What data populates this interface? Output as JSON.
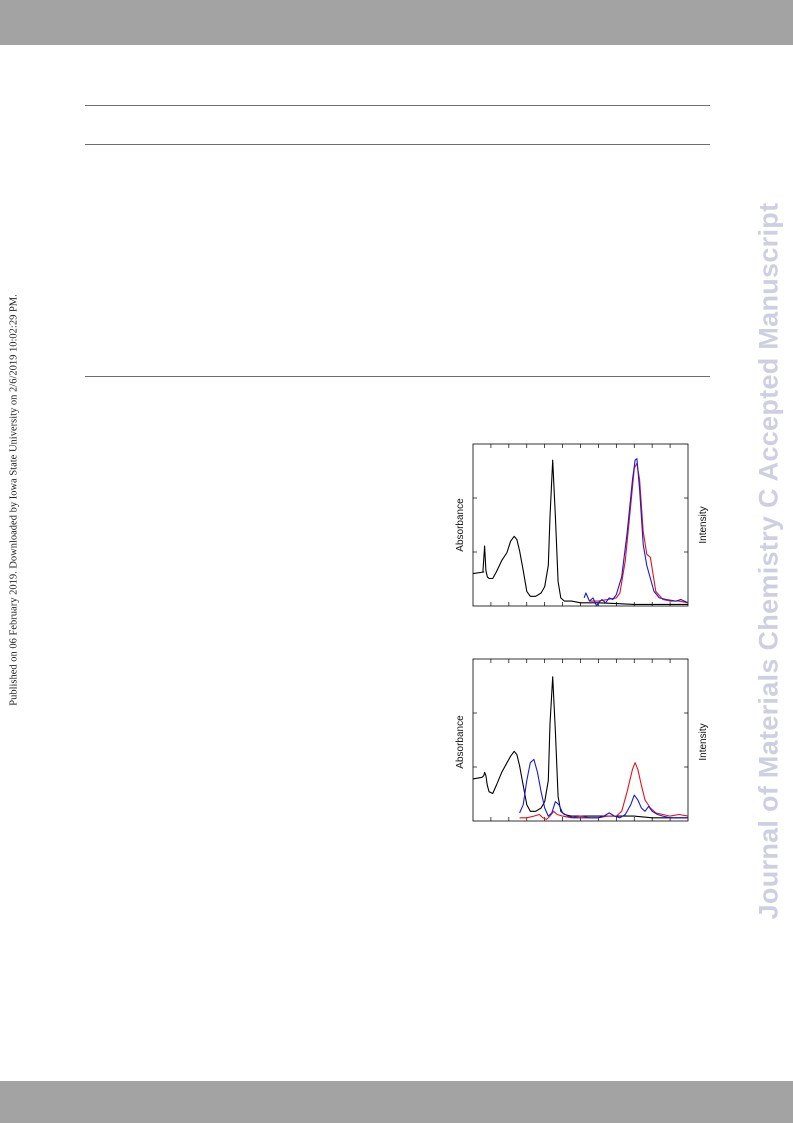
{
  "header": {
    "band_color": "#a3a3a3"
  },
  "footer": {
    "band_color": "#a3a3a3"
  },
  "side_note": "Published on 06 February 2019. Downloaded by Iowa State University on 2/6/2019 10:02:29 PM.",
  "watermark": "Journal of Materials Chemistry C Accepted Manuscript",
  "colors": {
    "absorbance": "#000000",
    "emission_red": "#e0141c",
    "emission_blue": "#1a1ad6",
    "watermark": "#cfcfe2"
  },
  "figures": [
    {
      "ylabel_left": "Absorbance",
      "ylabel_right": "Intensity"
    },
    {
      "ylabel_left": "Absorbance",
      "ylabel_right": "Intensity"
    }
  ],
  "chart_data": [
    {
      "type": "line",
      "xlabel": "",
      "ylabel": "Absorbance",
      "ylabel_right": "Intensity",
      "xlim": [
        0,
        12
      ],
      "ylim": [
        0,
        1
      ],
      "series": [
        {
          "color": "#000000",
          "x": [
            0,
            0.6,
            0.55,
            0.65,
            0.72,
            0.8,
            0.9,
            1.1,
            1.3,
            1.6,
            1.9,
            2.1,
            2.3,
            2.45,
            2.6,
            2.8,
            3.0,
            3.2,
            3.5,
            3.8,
            4.0,
            4.2,
            4.3,
            4.45,
            4.6,
            4.75,
            4.9,
            5.1,
            5.5,
            6.0,
            7.0,
            8.0,
            9.0,
            10.0,
            11.0,
            12.0
          ],
          "y": [
            0.2,
            0.21,
            0.21,
            0.37,
            0.22,
            0.18,
            0.17,
            0.17,
            0.21,
            0.28,
            0.33,
            0.4,
            0.43,
            0.41,
            0.34,
            0.22,
            0.09,
            0.06,
            0.06,
            0.08,
            0.12,
            0.25,
            0.55,
            0.9,
            0.55,
            0.15,
            0.05,
            0.03,
            0.03,
            0.02,
            0.02,
            0.015,
            0.01,
            0.01,
            0.01,
            0.01
          ]
        },
        {
          "color": "#e0141c",
          "x": [
            6.5,
            7.0,
            7.5,
            8.0,
            8.2,
            8.5,
            8.8,
            9.0,
            9.15,
            9.3,
            9.5,
            9.7,
            9.9,
            10.2,
            10.6,
            11.0,
            11.5,
            12.0
          ],
          "y": [
            0.03,
            0.03,
            0.04,
            0.05,
            0.08,
            0.28,
            0.62,
            0.85,
            0.88,
            0.78,
            0.46,
            0.32,
            0.3,
            0.09,
            0.04,
            0.03,
            0.03,
            0.02
          ]
        },
        {
          "color": "#1a1ad6",
          "x": [
            6.2,
            6.3,
            6.5,
            6.7,
            6.9,
            7.0,
            7.2,
            7.4,
            7.6,
            7.8,
            8.0,
            8.3,
            8.6,
            8.9,
            9.05,
            9.15,
            9.3,
            9.5,
            9.7,
            9.9,
            10.1,
            10.4,
            10.8,
            11.3,
            11.6,
            11.8,
            12.0
          ],
          "y": [
            0.05,
            0.08,
            0.03,
            0.05,
            0.0,
            0.02,
            0.04,
            0.02,
            0.05,
            0.04,
            0.07,
            0.18,
            0.45,
            0.78,
            0.9,
            0.91,
            0.72,
            0.38,
            0.25,
            0.17,
            0.09,
            0.05,
            0.04,
            0.03,
            0.04,
            0.03,
            0.02
          ]
        }
      ]
    },
    {
      "type": "line",
      "xlabel": "",
      "ylabel": "Absorbance",
      "ylabel_right": "Intensity",
      "xlim": [
        0,
        12
      ],
      "ylim": [
        0,
        1
      ],
      "series": [
        {
          "color": "#000000",
          "x": [
            0,
            0.5,
            0.6,
            0.65,
            0.72,
            0.8,
            0.9,
            1.1,
            1.3,
            1.6,
            1.9,
            2.1,
            2.3,
            2.45,
            2.6,
            2.8,
            3.0,
            3.2,
            3.5,
            3.8,
            4.0,
            4.2,
            4.3,
            4.45,
            4.6,
            4.75,
            4.9,
            5.1,
            5.5,
            6.0,
            7.0,
            8.0,
            9.0,
            10.0,
            11.0,
            12.0
          ],
          "y": [
            0.26,
            0.27,
            0.28,
            0.3,
            0.28,
            0.22,
            0.18,
            0.17,
            0.22,
            0.3,
            0.36,
            0.4,
            0.43,
            0.41,
            0.34,
            0.22,
            0.1,
            0.06,
            0.06,
            0.08,
            0.12,
            0.25,
            0.6,
            0.89,
            0.55,
            0.15,
            0.06,
            0.04,
            0.03,
            0.03,
            0.03,
            0.03,
            0.03,
            0.02,
            0.02,
            0.02
          ]
        },
        {
          "color": "#e0141c",
          "x": [
            2.6,
            3.0,
            3.4,
            3.7,
            3.9,
            4.1,
            4.3,
            4.5,
            4.7,
            5.0,
            5.5,
            6.0,
            6.5,
            7.0,
            7.5,
            8.0,
            8.3,
            8.6,
            8.9,
            9.05,
            9.2,
            9.4,
            9.6,
            9.9,
            10.2,
            10.6,
            11.0,
            11.5,
            12.0
          ],
          "y": [
            0.02,
            0.02,
            0.03,
            0.04,
            0.02,
            0.01,
            0.03,
            0.06,
            0.04,
            0.03,
            0.02,
            0.03,
            0.02,
            0.02,
            0.03,
            0.03,
            0.06,
            0.18,
            0.32,
            0.36,
            0.32,
            0.22,
            0.13,
            0.08,
            0.05,
            0.04,
            0.03,
            0.04,
            0.03
          ]
        },
        {
          "color": "#1a1ad6",
          "x": [
            2.6,
            2.8,
            3.0,
            3.2,
            3.4,
            3.6,
            3.8,
            4.0,
            4.2,
            4.4,
            4.6,
            4.8,
            5.0,
            5.3,
            5.6,
            6.0,
            6.5,
            7.0,
            7.3,
            7.6,
            7.9,
            8.2,
            8.5,
            8.8,
            9.0,
            9.2,
            9.4,
            9.6,
            9.8,
            10.0,
            10.3,
            10.6,
            11.0,
            11.5,
            12.0
          ],
          "y": [
            0.05,
            0.1,
            0.25,
            0.36,
            0.38,
            0.3,
            0.18,
            0.08,
            0.03,
            0.05,
            0.12,
            0.1,
            0.05,
            0.03,
            0.02,
            0.02,
            0.02,
            0.02,
            0.03,
            0.05,
            0.03,
            0.02,
            0.04,
            0.1,
            0.16,
            0.13,
            0.08,
            0.06,
            0.09,
            0.06,
            0.04,
            0.03,
            0.02,
            0.02,
            0.02
          ]
        }
      ]
    }
  ]
}
